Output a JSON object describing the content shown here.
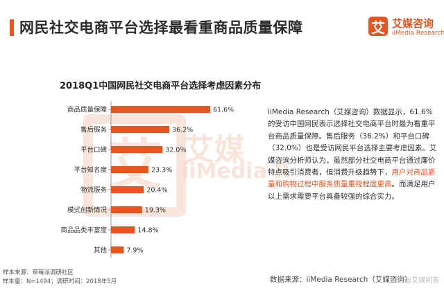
{
  "header": {
    "title": "网民社交电商平台选择最看重商品质量保障",
    "logo_mark": "艾",
    "logo_cn": "艾媒咨询",
    "logo_en": "iiMedia Research"
  },
  "watermark": {
    "glyph": "艾",
    "cn": "艾媒",
    "en": "iiMedia R"
  },
  "colors": {
    "accent": "#e9541f",
    "bar": "#e9541f"
  },
  "chart_data": {
    "type": "bar",
    "orientation": "horizontal",
    "title": "2018Q1中国网民社交电商平台选择考虑因素分布",
    "categories": [
      "商品质量保障",
      "售后服务",
      "平台口碑",
      "平台知名度",
      "物流服务",
      "模式创新情况",
      "商品品类丰富度",
      "其他"
    ],
    "values": [
      61.6,
      36.2,
      32.0,
      23.3,
      20.4,
      19.3,
      14.8,
      7.9
    ],
    "data_labels": [
      "61.6%",
      "36.2%",
      "32.0%",
      "23.3%",
      "20.4%",
      "19.3%",
      "14.8%",
      "7.9%"
    ],
    "unit": "%",
    "xlim": [
      0,
      70
    ],
    "grid": false,
    "legend": "none"
  },
  "description": {
    "part1": "iiMedia Research（艾媒咨询）数据显示，61.6%的受访中国网民表示选择社交电商平台时最为看重平台商品质量保障。售后服务（36.2%）和平台口碑（32.0%）也是受访网民平台选择主要考虑因素。艾媒咨询分析师认为，虽然部分社交电商平台通过廉价特点吸引消费者，但消费升级趋势下，",
    "highlight": "用户对商品质量和购物过程中服务质量重视程度更高",
    "part2": "。而满足用户以上需求需要平台具备较强的综合实力。"
  },
  "source": {
    "sample_source": "样本来源：草莓派调研社区",
    "sample_size": "样本量：N=1494；调研时间：2018年5月",
    "data_source": "数据来源：iiMedia Research（艾媒咨询）",
    "corner_brand": "头条 @艾媒问答"
  }
}
